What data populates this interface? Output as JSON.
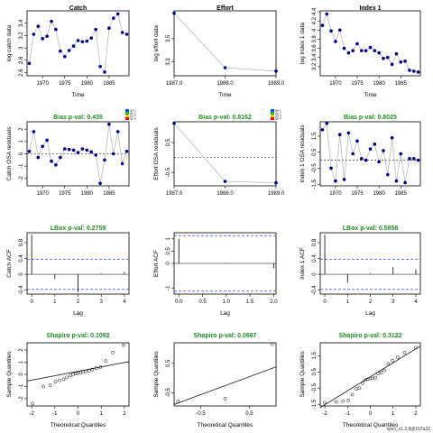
{
  "footer": "spict_v1.3.8@107a32",
  "colors": {
    "point": "#000080",
    "line": "#b0b0b0",
    "pass": "#228B22",
    "ci": "#3b3bff"
  },
  "legend": {
    "labels": [
      "Qtr 1",
      "Qtr 2",
      "Qtr 3",
      "Qtr 4"
    ],
    "colors": [
      "#0050ff",
      "#00c800",
      "#ffc800",
      "#ff0000"
    ]
  },
  "chart_data": [
    {
      "type": "line",
      "title": "Catch",
      "xlabel": "Time",
      "ylabel": "log catch data",
      "x": [
        1967,
        1968,
        1969,
        1970,
        1971,
        1972,
        1973,
        1974,
        1975,
        1976,
        1977,
        1978,
        1979,
        1980,
        1981,
        1982,
        1983,
        1984,
        1985,
        1986,
        1987,
        1988,
        1989
      ],
      "y": [
        2.75,
        3.22,
        3.35,
        3.15,
        3.19,
        3.43,
        3.3,
        2.95,
        2.86,
        2.96,
        3.03,
        3.12,
        3.1,
        3.11,
        3.16,
        3.3,
        2.7,
        2.61,
        3.32,
        3.48,
        3.55,
        3.25,
        3.22
      ],
      "ylim": [
        2.55,
        3.6
      ],
      "yticks": [
        2.6,
        2.8,
        3.0,
        3.2,
        3.4
      ],
      "xlim": [
        1966.5,
        1989.5
      ],
      "xticks": [
        1970,
        1975,
        1980,
        1985
      ]
    },
    {
      "type": "line",
      "title": "Effort",
      "xlabel": "Time",
      "ylabel": "log effort data",
      "x": [
        1987,
        1988,
        1989
      ],
      "y": [
        3.72,
        3.25,
        3.22
      ],
      "ylim": [
        3.18,
        3.74
      ],
      "yticks": [
        3.3,
        3.5
      ],
      "xlim": [
        1987,
        1989
      ],
      "xticks": [
        1987,
        1988,
        1989
      ],
      "xticklabels": [
        "1987.0",
        "1988.0",
        "1989.0"
      ]
    },
    {
      "type": "line",
      "title": "Index 1",
      "xlabel": "Time",
      "ylabel": "log index 1 data",
      "x": [
        1967,
        1968,
        1969,
        1970,
        1971,
        1972,
        1973,
        1974,
        1975,
        1976,
        1977,
        1978,
        1979,
        1980,
        1981,
        1982,
        1983,
        1984,
        1985,
        1986,
        1987,
        1988,
        1989
      ],
      "y": [
        4.1,
        4.35,
        3.98,
        3.75,
        4.0,
        3.6,
        3.5,
        3.55,
        3.7,
        3.55,
        3.55,
        3.62,
        3.55,
        3.5,
        3.38,
        3.4,
        3.25,
        3.48,
        3.3,
        3.32,
        3.12,
        3.1,
        3.08
      ],
      "ylim": [
        3.0,
        4.42
      ],
      "yticks": [
        3.2,
        3.4,
        3.6,
        3.8,
        4.0,
        4.2,
        4.4
      ],
      "xlim": [
        1966.5,
        1989.5
      ],
      "xticks": [
        1970,
        1975,
        1980,
        1985
      ]
    },
    {
      "type": "line",
      "title": "Bias p-val: 0.435",
      "xlabel": "",
      "ylabel": "Catch OSA residuals",
      "x": [
        1967,
        1968,
        1969,
        1970,
        1971,
        1972,
        1973,
        1974,
        1975,
        1976,
        1977,
        1978,
        1979,
        1980,
        1981,
        1982,
        1983,
        1984,
        1985,
        1986,
        1987,
        1988,
        1989
      ],
      "y": [
        0.2,
        1.8,
        -0.3,
        0.6,
        1.1,
        -0.6,
        -0.9,
        -0.3,
        0.4,
        0.35,
        0.3,
        0.1,
        0.4,
        0.3,
        0.15,
        -0.1,
        -2.4,
        -0.5,
        2.4,
        0.0,
        1.8,
        -0.8,
        0.2
      ],
      "ylim": [
        -2.6,
        2.6
      ],
      "yticks": [
        -2,
        -1,
        0,
        1,
        2
      ],
      "xlim": [
        1966.5,
        1989.5
      ],
      "xticks": [
        1970,
        1975,
        1980,
        1985
      ],
      "zero_line": true
    },
    {
      "type": "line",
      "title": "Bias p-val: 0.8162",
      "xlabel": "",
      "ylabel": "Effort OSA residuals",
      "x": [
        1987,
        1988,
        1989
      ],
      "y": [
        1.15,
        -0.8,
        -0.85
      ],
      "ylim": [
        -0.95,
        1.2
      ],
      "yticks": [
        -0.5,
        0.5
      ],
      "xlim": [
        1987,
        1989
      ],
      "xticks": [
        1987,
        1988,
        1989
      ],
      "xticklabels": [
        "1987.0",
        "1988.0",
        "1989.0"
      ],
      "zero_line": true
    },
    {
      "type": "line",
      "title": "Bias p-val: 0.8025",
      "xlabel": "",
      "ylabel": "Index 1 OSA residuals",
      "x": [
        1967,
        1968,
        1969,
        1970,
        1971,
        1972,
        1973,
        1974,
        1975,
        1976,
        1977,
        1978,
        1979,
        1980,
        1981,
        1982,
        1983,
        1984,
        1985,
        1986,
        1987,
        1988,
        1989
      ],
      "y": [
        1.9,
        2.3,
        -0.5,
        -1.3,
        1.6,
        -1.2,
        1.7,
        0.4,
        1.2,
        0.1,
        0.0,
        0.7,
        1.0,
        -0.1,
        0.6,
        -0.9,
        1.4,
        -1.3,
        0.4,
        -1.4,
        0.1,
        0.1,
        0.0
      ],
      "ylim": [
        -1.6,
        2.4
      ],
      "yticks": [
        -1.5,
        -0.5,
        0.5,
        1.5
      ],
      "xlim": [
        1966.5,
        1989.5
      ],
      "xticks": [
        1970,
        1975,
        1980,
        1985
      ],
      "zero_line": true
    },
    {
      "type": "bar",
      "title": "LBox p-val: 0.2759",
      "xlabel": "Lag",
      "ylabel": "Catch ACF",
      "x": [
        0,
        1,
        2,
        3,
        4
      ],
      "y": [
        1.0,
        -0.12,
        -0.45,
        0.02,
        0.06
      ],
      "ci": 0.38,
      "ylim": [
        -0.5,
        1.05
      ],
      "yticks": [
        -0.4,
        0.0,
        0.4,
        0.8
      ],
      "xlim": [
        -0.2,
        4.2
      ],
      "xticks": [
        0,
        1,
        2,
        3,
        4
      ]
    },
    {
      "type": "bar",
      "title": "",
      "xlabel": "Lag",
      "ylabel": "Effort ACF",
      "x": [
        0,
        1,
        2
      ],
      "y": [
        1.0,
        -0.02,
        -0.2
      ],
      "ci": 1.13,
      "ylim": [
        -1.25,
        1.25
      ],
      "yticks": [
        -1.0,
        0.0,
        0.5,
        1.0
      ],
      "xlim": [
        -0.1,
        2.05
      ],
      "xticks": [
        0.0,
        0.5,
        1.0,
        1.5,
        2.0
      ],
      "xticklabels": [
        "0.0",
        "0.5",
        "1.0",
        "1.5",
        "2.0"
      ]
    },
    {
      "type": "bar",
      "title": "LBox p-val: 0.5858",
      "xlabel": "Lag",
      "ylabel": "Index 1 ACF",
      "x": [
        0,
        1,
        2,
        3,
        4
      ],
      "y": [
        1.0,
        -0.22,
        0.02,
        0.18,
        0.12
      ],
      "ci": 0.38,
      "ylim": [
        -0.5,
        1.05
      ],
      "yticks": [
        -0.4,
        0.0,
        0.4,
        0.8
      ],
      "xlim": [
        -0.2,
        4.2
      ],
      "xticks": [
        0,
        1,
        2,
        3,
        4
      ]
    },
    {
      "type": "scatter",
      "title": "Shapiro p-val: 0.1092",
      "xlabel": "Theoretical Quantiles",
      "ylabel": "Sample Quantiles",
      "x": [
        -1.96,
        -1.5,
        -1.2,
        -0.97,
        -0.79,
        -0.62,
        -0.48,
        -0.34,
        -0.22,
        -0.11,
        0.0,
        0.11,
        0.22,
        0.34,
        0.48,
        0.62,
        0.79,
        0.97,
        1.2,
        1.5,
        1.96
      ],
      "y": [
        -2.4,
        -1.0,
        -0.9,
        -0.6,
        -0.5,
        -0.4,
        -0.25,
        -0.1,
        0.0,
        0.05,
        0.1,
        0.15,
        0.2,
        0.25,
        0.3,
        0.4,
        0.5,
        0.6,
        1.1,
        1.8,
        2.4
      ],
      "line": [
        [
          -2.2,
          -0.55
        ],
        [
          2.2,
          1.05
        ]
      ],
      "ylim": [
        -2.6,
        2.6
      ],
      "yticks": [
        -2,
        -1,
        0,
        1,
        2
      ],
      "xlim": [
        -2.2,
        2.2
      ],
      "xticks": [
        -2,
        -1,
        0,
        1,
        2
      ]
    },
    {
      "type": "scatter",
      "title": "Shapiro p-val: 0.0667",
      "xlabel": "Theoretical Quantiles",
      "ylabel": "Sample Quantiles",
      "x": [
        -0.97,
        0.0,
        0.97
      ],
      "y": [
        -0.8,
        -0.7,
        1.15
      ],
      "line": [
        [
          -1.05,
          -0.9
        ],
        [
          1.05,
          0.38
        ]
      ],
      "ylim": [
        -0.95,
        1.2
      ],
      "yticks": [
        -0.5,
        0.5
      ],
      "xlim": [
        -1.05,
        1.05
      ],
      "xticks": [
        -0.5,
        0.5
      ]
    },
    {
      "type": "scatter",
      "title": "Shapiro p-val: 0.3122",
      "xlabel": "Theoretical Quantiles",
      "ylabel": "Sample Quantiles",
      "x": [
        -2.0,
        -1.5,
        -1.2,
        -0.97,
        -0.79,
        -0.62,
        -0.48,
        -0.34,
        -0.22,
        -0.11,
        0.0,
        0.11,
        0.22,
        0.34,
        0.48,
        0.62,
        0.79,
        0.97,
        1.2,
        1.5,
        2.0
      ],
      "y": [
        -1.4,
        -1.35,
        -1.3,
        -1.25,
        -0.9,
        -0.55,
        -0.5,
        -0.2,
        0.0,
        0.05,
        0.1,
        0.1,
        0.15,
        0.4,
        0.45,
        0.6,
        1.0,
        1.2,
        1.4,
        1.7,
        2.0
      ],
      "line": [
        [
          -2.2,
          -1.7
        ],
        [
          2.2,
          2.1
        ]
      ],
      "ylim": [
        -1.6,
        2.3
      ],
      "yticks": [
        -1.5,
        -0.5,
        0.5,
        1.5
      ],
      "xlim": [
        -2.2,
        2.2
      ],
      "xticks": [
        -2,
        -1,
        0,
        1,
        2
      ]
    }
  ]
}
